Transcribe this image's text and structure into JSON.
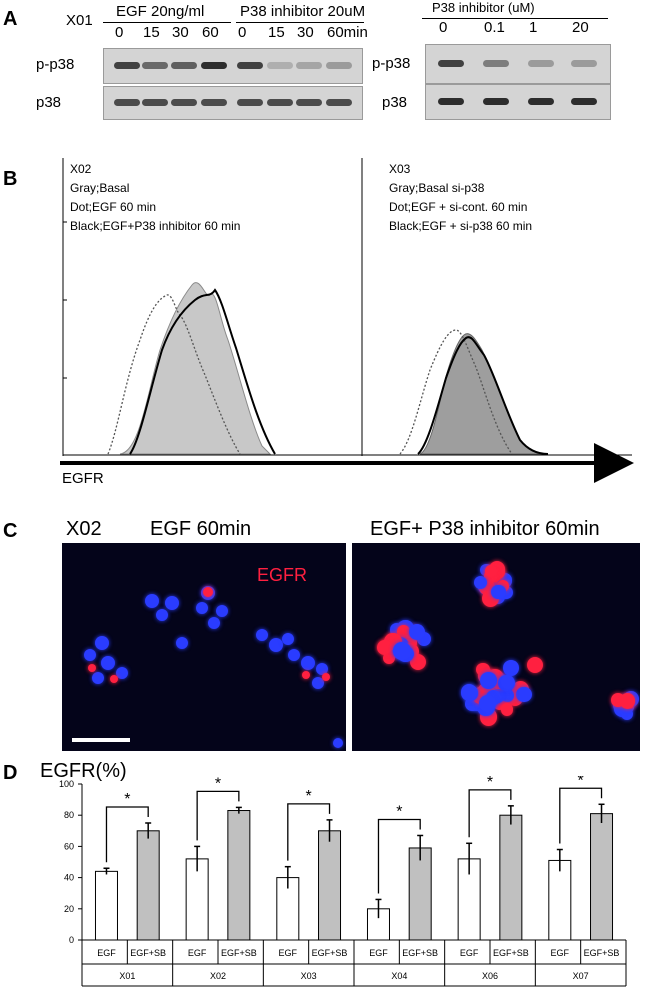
{
  "panel_labels": {
    "a": "A",
    "b": "B",
    "c": "C",
    "d": "D"
  },
  "panelA": {
    "sample": "X01",
    "group1": "EGF 20ng/ml",
    "group2": "P38 inhibitor 20uM",
    "group3": "P38 inhibitor (uM)",
    "lanes_left": [
      "0",
      "15",
      "30",
      "60",
      "0",
      "15",
      "30",
      "60min"
    ],
    "lanes_right": [
      "0",
      "0.1",
      "1",
      "20"
    ],
    "row_pp38": "p-p38",
    "row_p38": "p38",
    "pp38_left_intensity": [
      0.75,
      0.55,
      0.6,
      0.85,
      0.75,
      0.2,
      0.25,
      0.3
    ],
    "pp38_right_intensity": [
      0.75,
      0.45,
      0.3,
      0.3
    ]
  },
  "panelB": {
    "left": {
      "sample": "X02",
      "lines": [
        "Gray;Basal",
        "Dot;EGF 60 min",
        "Black;EGF+P38 inhibitor 60 min"
      ]
    },
    "right": {
      "sample": "X03",
      "lines": [
        "Gray;Basal si-p38",
        "Dot;EGF + si-cont. 60 min",
        "Black;EGF + si-p38 60 min"
      ]
    },
    "axis_label": "EGFR"
  },
  "panelC": {
    "sample": "X02",
    "left_title": "EGF 60min",
    "right_title": "EGF+ P38 inhibitor 60min",
    "stain": "EGFR",
    "colors": {
      "nucleus": "#2a3cff",
      "egfr": "#ff2040",
      "background": "#04041a"
    }
  },
  "chart_data": {
    "type": "bar",
    "title": "EGFR(%)",
    "ylabel": "EGFR(%)",
    "ylim": [
      0,
      100
    ],
    "yticks": [
      0,
      20,
      40,
      60,
      80,
      100
    ],
    "bar_labels": [
      "EGF",
      "EGF+SB"
    ],
    "groups": [
      "X01",
      "X02",
      "X03",
      "X04",
      "X06",
      "X07"
    ],
    "series": [
      {
        "name": "EGF",
        "values": [
          44,
          52,
          40,
          20,
          52,
          51
        ],
        "errors": [
          2,
          8,
          7,
          6,
          10,
          7
        ],
        "color": "#ffffff"
      },
      {
        "name": "EGF+SB",
        "values": [
          70,
          83,
          70,
          59,
          80,
          81
        ],
        "errors": [
          5,
          2,
          7,
          8,
          6,
          6
        ],
        "color": "#c0c0c0"
      }
    ],
    "significance": "*",
    "grid": false
  }
}
